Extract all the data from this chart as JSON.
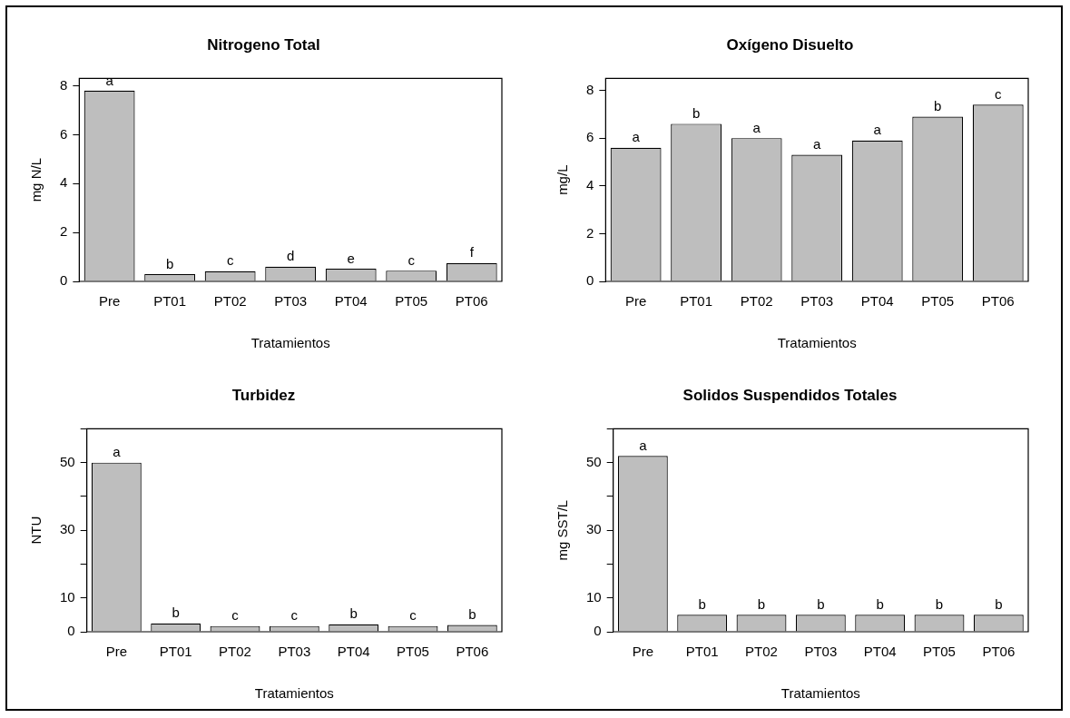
{
  "chart_data": [
    {
      "type": "bar",
      "title": "Nitrogeno Total",
      "xlabel": "Tratamientos",
      "ylabel": "mg N/L",
      "categories": [
        "Pre",
        "PT01",
        "PT02",
        "PT03",
        "PT04",
        "PT05",
        "PT06"
      ],
      "values": [
        7.8,
        0.3,
        0.42,
        0.6,
        0.52,
        0.44,
        0.75
      ],
      "value_labels": [
        "a",
        "b",
        "c",
        "d",
        "e",
        "c",
        "f"
      ],
      "color": "#bebebe",
      "ylim": [
        0,
        8.3
      ],
      "yticks": [
        0,
        2,
        4,
        6,
        8
      ],
      "grid": false,
      "legend": false
    },
    {
      "type": "bar",
      "title": "Oxígeno Disuelto",
      "xlabel": "Tratamientos",
      "ylabel": "mg/L",
      "categories": [
        "Pre",
        "PT01",
        "PT02",
        "PT03",
        "PT04",
        "PT05",
        "PT06"
      ],
      "values": [
        5.6,
        6.6,
        6.0,
        5.3,
        5.9,
        6.9,
        7.4
      ],
      "value_labels": [
        "a",
        "b",
        "a",
        "a",
        "a",
        "b",
        "c"
      ],
      "color": "#bebebe",
      "ylim": [
        0,
        8.5
      ],
      "yticks": [
        0,
        2,
        4,
        6,
        8
      ],
      "grid": false,
      "legend": false
    },
    {
      "type": "bar",
      "title": "Turbidez",
      "xlabel": "Tratamientos",
      "ylabel": "NTU",
      "categories": [
        "Pre",
        "PT01",
        "PT02",
        "PT03",
        "PT04",
        "PT05",
        "PT06"
      ],
      "values": [
        50,
        2.5,
        1.7,
        1.7,
        2.2,
        1.7,
        2.0
      ],
      "value_labels": [
        "a",
        "b",
        "c",
        "c",
        "b",
        "c",
        "b"
      ],
      "color": "#bebebe",
      "ylim": [
        0,
        60
      ],
      "yticks": [
        0,
        10,
        {
          "value": 20,
          "label": null
        },
        30,
        {
          "value": 40,
          "label": null
        },
        50,
        {
          "value": 60,
          "label": null
        }
      ],
      "grid": false,
      "legend": false
    },
    {
      "type": "bar",
      "title": "Solidos Suspendidos Totales",
      "xlabel": "Tratamientos",
      "ylabel": "mg SST/L",
      "categories": [
        "Pre",
        "PT01",
        "PT02",
        "PT03",
        "PT04",
        "PT05",
        "PT06"
      ],
      "values": [
        52,
        5,
        5,
        5,
        5,
        5,
        5
      ],
      "value_labels": [
        "a",
        "b",
        "b",
        "b",
        "b",
        "b",
        "b"
      ],
      "color": "#bebebe",
      "ylim": [
        0,
        60
      ],
      "yticks": [
        0,
        10,
        {
          "value": 20,
          "label": null
        },
        30,
        {
          "value": 40,
          "label": null
        },
        50,
        {
          "value": 60,
          "label": null
        }
      ],
      "grid": false,
      "legend": false
    }
  ]
}
